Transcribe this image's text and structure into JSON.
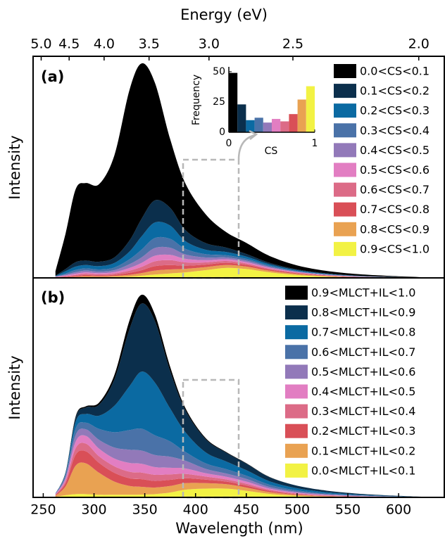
{
  "chart_data": [
    {
      "type": "area",
      "stacked": true,
      "panel_label": "(a)",
      "ylabel": "Intensity",
      "x2label": "Energy (eV)",
      "x2scale": "reciprocal",
      "x2lim": [
        5.166,
        1.922
      ],
      "x2ticks": [
        {
          "value": 5,
          "label": "5.0"
        },
        4.5,
        {
          "value": 4,
          "label": "4.0"
        },
        3.5,
        {
          "value": 3,
          "label": "3.0"
        },
        2.5,
        {
          "value": 2,
          "label": "2.0"
        }
      ],
      "x": [
        262,
        272,
        282,
        292,
        305,
        320,
        335,
        347,
        360,
        375,
        390,
        410,
        430,
        450,
        475,
        510,
        560,
        640
      ],
      "xlim": [
        240,
        645
      ],
      "ylim": [
        0,
        1
      ],
      "legend": "upper right",
      "series": [
        {
          "name": "0.0<CS<0.1",
          "color": "#000000",
          "values": [
            0.02,
            0.16,
            0.33,
            0.35,
            0.35,
            0.46,
            0.68,
            0.7,
            0.53,
            0.31,
            0.21,
            0.13,
            0.07,
            0.05,
            0.03,
            0.015,
            0.007,
            0
          ]
        },
        {
          "name": "0.1<CS<0.2",
          "color": "#0b2f4c",
          "values": [
            0.002,
            0.01,
            0.02,
            0.02,
            0.02,
            0.025,
            0.05,
            0.08,
            0.1,
            0.08,
            0.05,
            0.03,
            0.02,
            0.012,
            0.006,
            0.003,
            0.001,
            0
          ]
        },
        {
          "name": "0.2<CS<0.3",
          "color": "#0b6aa2",
          "values": [
            0.001,
            0.01,
            0.015,
            0.015,
            0.015,
            0.02,
            0.035,
            0.06,
            0.07,
            0.06,
            0.035,
            0.02,
            0.015,
            0.01,
            0.006,
            0.003,
            0.001,
            0
          ]
        },
        {
          "name": "0.3<CS<0.4",
          "color": "#4a72a8",
          "values": [
            0.001,
            0.005,
            0.01,
            0.01,
            0.01,
            0.012,
            0.022,
            0.035,
            0.045,
            0.04,
            0.025,
            0.015,
            0.01,
            0.008,
            0.005,
            0.002,
            0.001,
            0
          ]
        },
        {
          "name": "0.4<CS<0.5",
          "color": "#9279b9",
          "values": [
            0.001,
            0.004,
            0.007,
            0.008,
            0.007,
            0.009,
            0.017,
            0.025,
            0.035,
            0.032,
            0.02,
            0.012,
            0.008,
            0.007,
            0.004,
            0.002,
            0.001,
            0
          ]
        },
        {
          "name": "0.5<CS<0.6",
          "color": "#e27ec2",
          "values": [
            0.001,
            0.003,
            0.005,
            0.006,
            0.005,
            0.006,
            0.012,
            0.018,
            0.025,
            0.024,
            0.016,
            0.01,
            0.008,
            0.006,
            0.004,
            0.002,
            0.001,
            0
          ]
        },
        {
          "name": "0.6<CS<0.7",
          "color": "#dc6b87",
          "values": [
            0.001,
            0.003,
            0.005,
            0.006,
            0.005,
            0.006,
            0.01,
            0.015,
            0.022,
            0.022,
            0.015,
            0.01,
            0.008,
            0.006,
            0.004,
            0.002,
            0.001,
            0
          ]
        },
        {
          "name": "0.7<CS<0.8",
          "color": "#d94f57",
          "values": [
            0.001,
            0.002,
            0.004,
            0.005,
            0.004,
            0.005,
            0.009,
            0.013,
            0.02,
            0.02,
            0.014,
            0.011,
            0.01,
            0.008,
            0.005,
            0.003,
            0.001,
            0
          ]
        },
        {
          "name": "0.8<CS<0.9",
          "color": "#e9a252",
          "values": [
            0.001,
            0.002,
            0.003,
            0.005,
            0.004,
            0.005,
            0.008,
            0.012,
            0.018,
            0.018,
            0.016,
            0.014,
            0.013,
            0.011,
            0.007,
            0.004,
            0.001,
            0
          ]
        },
        {
          "name": "0.9<CS<1.0",
          "color": "#f2f244",
          "values": [
            0.001,
            0.001,
            0.002,
            0.003,
            0.003,
            0.004,
            0.006,
            0.01,
            0.015,
            0.02,
            0.025,
            0.035,
            0.045,
            0.04,
            0.024,
            0.01,
            0.002,
            0
          ]
        }
      ]
    },
    {
      "type": "area",
      "stacked": true,
      "panel_label": "(b)",
      "ylabel": "Intensity",
      "xlabel": "Wavelength (nm)",
      "x": [
        262,
        272,
        282,
        292,
        305,
        320,
        335,
        347,
        360,
        375,
        390,
        410,
        430,
        450,
        475,
        510,
        560,
        640
      ],
      "xlim": [
        240,
        645
      ],
      "ylim": [
        0,
        1
      ],
      "xticks": [
        250,
        300,
        350,
        400,
        450,
        500,
        550,
        600
      ],
      "legend": "upper right",
      "series": [
        {
          "name": "0.9<MLCT+IL<1.0",
          "color": "#000000",
          "values": [
            0,
            0,
            0.005,
            0.005,
            0.01,
            0.02,
            0.04,
            0.04,
            0.03,
            0.02,
            0.01,
            0.005,
            0.003,
            0.002,
            0.001,
            0,
            0,
            0
          ]
        },
        {
          "name": "0.8<MLCT+IL<0.9",
          "color": "#0b2f4c",
          "values": [
            0,
            0.005,
            0.02,
            0.03,
            0.05,
            0.12,
            0.26,
            0.31,
            0.28,
            0.17,
            0.1,
            0.06,
            0.04,
            0.03,
            0.018,
            0.01,
            0.004,
            0
          ]
        },
        {
          "name": "0.7<MLCT+IL<0.8",
          "color": "#0b6aa2",
          "values": [
            0,
            0.005,
            0.03,
            0.04,
            0.06,
            0.12,
            0.2,
            0.26,
            0.24,
            0.15,
            0.09,
            0.05,
            0.035,
            0.025,
            0.015,
            0.008,
            0.003,
            0
          ]
        },
        {
          "name": "0.6<MLCT+IL<0.7",
          "color": "#4a72a8",
          "values": [
            0.002,
            0.01,
            0.03,
            0.03,
            0.05,
            0.07,
            0.09,
            0.1,
            0.09,
            0.07,
            0.04,
            0.025,
            0.02,
            0.015,
            0.01,
            0.005,
            0.002,
            0
          ]
        },
        {
          "name": "0.5<MLCT+IL<0.6",
          "color": "#9279b9",
          "values": [
            0.002,
            0.01,
            0.03,
            0.03,
            0.04,
            0.05,
            0.06,
            0.06,
            0.055,
            0.05,
            0.035,
            0.02,
            0.015,
            0.012,
            0.007,
            0.004,
            0.002,
            0
          ]
        },
        {
          "name": "0.4<MLCT+IL<0.5",
          "color": "#e27ec2",
          "values": [
            0.002,
            0.01,
            0.03,
            0.035,
            0.035,
            0.035,
            0.04,
            0.04,
            0.035,
            0.03,
            0.025,
            0.015,
            0.012,
            0.01,
            0.005,
            0.003,
            0.001,
            0
          ]
        },
        {
          "name": "0.3<MLCT+IL<0.4",
          "color": "#dc6b87",
          "values": [
            0.002,
            0.01,
            0.03,
            0.035,
            0.03,
            0.03,
            0.03,
            0.03,
            0.028,
            0.025,
            0.02,
            0.014,
            0.01,
            0.008,
            0.005,
            0.003,
            0.001,
            0
          ]
        },
        {
          "name": "0.2<MLCT+IL<0.3",
          "color": "#d94f57",
          "values": [
            0.003,
            0.015,
            0.05,
            0.055,
            0.045,
            0.04,
            0.035,
            0.035,
            0.03,
            0.028,
            0.022,
            0.016,
            0.012,
            0.009,
            0.005,
            0.002,
            0.001,
            0
          ]
        },
        {
          "name": "0.1<MLCT+IL<0.2",
          "color": "#e9a252",
          "values": [
            0.005,
            0.04,
            0.13,
            0.14,
            0.1,
            0.06,
            0.04,
            0.035,
            0.03,
            0.03,
            0.03,
            0.025,
            0.02,
            0.015,
            0.008,
            0.004,
            0.001,
            0
          ]
        },
        {
          "name": "0.0<MLCT+IL<0.1",
          "color": "#f2f244",
          "values": [
            0.002,
            0.01,
            0.015,
            0.015,
            0.012,
            0.012,
            0.012,
            0.013,
            0.015,
            0.022,
            0.035,
            0.04,
            0.04,
            0.03,
            0.015,
            0.005,
            0.002,
            0
          ]
        }
      ]
    },
    {
      "type": "histogram",
      "xlabel": "CS",
      "ylabel": "Frequency",
      "bins": [
        0,
        0.1,
        0.2,
        0.3,
        0.4,
        0.5,
        0.6,
        0.7,
        0.8,
        0.9,
        1
      ],
      "values": [
        49,
        23,
        10,
        12,
        8,
        11,
        9,
        15,
        27,
        38
      ],
      "colors": [
        "#000000",
        "#0b2f4c",
        "#0b6aa2",
        "#4a72a8",
        "#9279b9",
        "#e27ec2",
        "#dc6b87",
        "#d94f57",
        "#e9a252",
        "#f2f244"
      ],
      "xlim": [
        0,
        1
      ],
      "ylim": [
        0,
        54
      ],
      "xticks": [
        0,
        1
      ],
      "yticks": [
        0,
        25,
        50
      ]
    }
  ]
}
